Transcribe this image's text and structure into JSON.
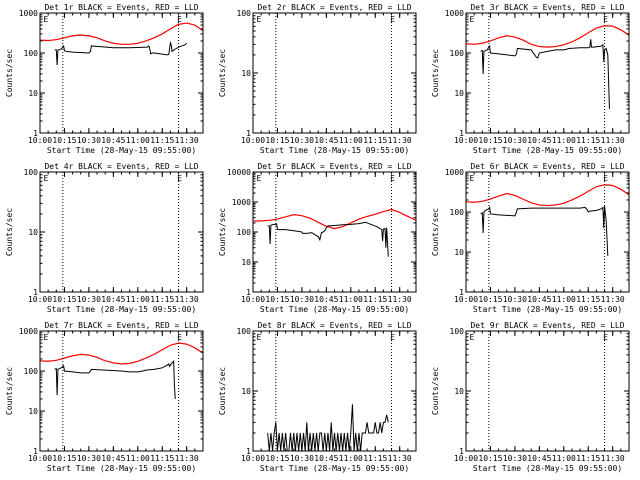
{
  "figure": {
    "xlabel_template": "Start Time (28-May-15 09:55:00)",
    "ylabel": "Counts/sec",
    "title_suffix": " BLACK = Events, RED = LLD",
    "x_ticks": [
      "10:00",
      "10:15",
      "10:30",
      "10:45",
      "11:00",
      "11:15",
      "11:30"
    ],
    "marker_E": "E",
    "colors": {
      "events": "#000000",
      "lld": "#ff0000",
      "axes": "#000000",
      "background": "#ffffff"
    }
  },
  "chart_data": [
    {
      "type": "line",
      "title": "Det 1r",
      "x_range_min": [
        600,
        700
      ],
      "y_range": [
        1,
        1000
      ],
      "y_ticks": [
        1,
        10,
        100,
        1000
      ],
      "y_tick_labels": [
        "1",
        "10",
        "100",
        "1000"
      ],
      "saa_lines_min": [
        614,
        685
      ],
      "E_markers_min": [
        604,
        686
      ],
      "series": [
        {
          "name": "LLD",
          "color": "#ff0000",
          "x": [
            600,
            605,
            610,
            615,
            620,
            625,
            630,
            635,
            640,
            645,
            650,
            655,
            660,
            665,
            670,
            675,
            680,
            685,
            690,
            695,
            700
          ],
          "y": [
            210,
            205,
            215,
            240,
            270,
            280,
            270,
            240,
            200,
            175,
            165,
            165,
            175,
            200,
            240,
            300,
            400,
            520,
            560,
            500,
            360
          ]
        },
        {
          "name": "Events",
          "color": "#000000",
          "x": [
            609,
            610,
            610.5,
            611,
            612,
            613,
            614,
            614.5,
            615,
            616,
            620,
            630,
            631,
            631.5,
            636,
            645,
            655,
            666,
            666.5,
            667,
            668,
            669,
            670,
            674,
            678,
            679,
            680,
            680.5,
            681,
            683,
            685,
            687,
            689,
            690
          ],
          "y": [
            120,
            120,
            50,
            118,
            122,
            125,
            140,
            150,
            115,
            110,
            105,
            100,
            110,
            150,
            145,
            135,
            135,
            140,
            150,
            145,
            95,
            100,
            100,
            95,
            90,
            92,
            180,
            160,
            110,
            125,
            140,
            150,
            160,
            175
          ]
        }
      ]
    },
    {
      "type": "line",
      "title": "Det 2r",
      "x_range_min": [
        600,
        700
      ],
      "y_range": [
        1,
        100
      ],
      "y_ticks": [
        1,
        10,
        100
      ],
      "y_tick_labels": [
        "1",
        "10",
        "100"
      ],
      "saa_lines_min": [
        614,
        685
      ],
      "E_markers_min": [
        604,
        686
      ],
      "series": []
    },
    {
      "type": "line",
      "title": "Det 3r",
      "x_range_min": [
        600,
        700
      ],
      "y_range": [
        1,
        1000
      ],
      "y_ticks": [
        1,
        10,
        100,
        1000
      ],
      "y_tick_labels": [
        "1",
        "10",
        "100",
        "1000"
      ],
      "saa_lines_min": [
        614,
        685
      ],
      "E_markers_min": [
        604,
        686
      ],
      "series": [
        {
          "name": "LLD",
          "color": "#ff0000",
          "x": [
            600,
            605,
            610,
            615,
            620,
            625,
            630,
            635,
            640,
            645,
            650,
            655,
            660,
            665,
            670,
            675,
            680,
            685,
            690,
            695,
            700
          ],
          "y": [
            170,
            165,
            175,
            200,
            240,
            270,
            250,
            210,
            165,
            145,
            140,
            145,
            160,
            190,
            240,
            320,
            420,
            480,
            470,
            380,
            280
          ]
        },
        {
          "name": "Events",
          "color": "#000000",
          "x": [
            609,
            610,
            610.5,
            611,
            612,
            613,
            614,
            614.5,
            615,
            620,
            630,
            631,
            631.5,
            640,
            643,
            644,
            645,
            650,
            655,
            660,
            662,
            663,
            670,
            675,
            676,
            676.5,
            677,
            679,
            680,
            682,
            683,
            684,
            684.5,
            685,
            686,
            687,
            688
          ],
          "y": [
            110,
            115,
            30,
            110,
            115,
            120,
            140,
            150,
            100,
            95,
            85,
            95,
            130,
            120,
            80,
            75,
            100,
            110,
            120,
            120,
            125,
            130,
            135,
            135,
            140,
            220,
            140,
            140,
            145,
            145,
            150,
            160,
            60,
            120,
            130,
            90,
            4
          ]
        }
      ]
    },
    {
      "type": "line",
      "title": "Det 4r",
      "x_range_min": [
        600,
        700
      ],
      "y_range": [
        1,
        100
      ],
      "y_ticks": [
        1,
        10,
        100
      ],
      "y_tick_labels": [
        "1",
        "10",
        "100"
      ],
      "saa_lines_min": [
        614,
        685
      ],
      "E_markers_min": [
        604,
        686
      ],
      "series": []
    },
    {
      "type": "line",
      "title": "Det 5r",
      "x_range_min": [
        600,
        700
      ],
      "y_range": [
        1,
        10000
      ],
      "y_ticks": [
        1,
        10,
        100,
        1000,
        10000
      ],
      "y_tick_labels": [
        "1",
        "10",
        "100",
        "1000",
        "10000"
      ],
      "saa_lines_min": [
        614,
        685
      ],
      "E_markers_min": [
        604,
        686
      ],
      "series": [
        {
          "name": "LLD",
          "color": "#ff0000",
          "x": [
            600,
            605,
            610,
            615,
            620,
            625,
            630,
            635,
            640,
            645,
            650,
            655,
            660,
            665,
            670,
            675,
            680,
            685,
            690,
            695,
            700
          ],
          "y": [
            230,
            235,
            245,
            270,
            320,
            380,
            350,
            290,
            210,
            155,
            130,
            150,
            200,
            270,
            330,
            390,
            480,
            560,
            450,
            330,
            250
          ]
        },
        {
          "name": "Events",
          "color": "#000000",
          "x": [
            609,
            610,
            610.5,
            611,
            612,
            613,
            614,
            614.5,
            615,
            620,
            625,
            630,
            630.5,
            633,
            636,
            640,
            641,
            642,
            643,
            644,
            645,
            646,
            650,
            655,
            660,
            665,
            668,
            669,
            670,
            676,
            678,
            679,
            679.5,
            680,
            681,
            681.5,
            682,
            683
          ],
          "y": [
            160,
            160,
            40,
            170,
            175,
            180,
            180,
            185,
            120,
            120,
            110,
            100,
            90,
            90,
            95,
            70,
            55,
            95,
            100,
            110,
            140,
            160,
            165,
            175,
            180,
            190,
            205,
            210,
            200,
            150,
            130,
            120,
            50,
            125,
            130,
            30,
            140,
            15
          ]
        }
      ]
    },
    {
      "type": "line",
      "title": "Det 6r",
      "x_range_min": [
        600,
        700
      ],
      "y_range": [
        1,
        1000
      ],
      "y_ticks": [
        1,
        10,
        100,
        1000
      ],
      "y_tick_labels": [
        "1",
        "10",
        "100",
        "1000"
      ],
      "saa_lines_min": [
        614,
        685
      ],
      "E_markers_min": [
        604,
        686
      ],
      "series": [
        {
          "name": "LLD",
          "color": "#ff0000",
          "x": [
            600,
            605,
            610,
            615,
            620,
            625,
            630,
            635,
            640,
            645,
            650,
            655,
            660,
            665,
            670,
            675,
            680,
            685,
            690,
            695,
            700
          ],
          "y": [
            180,
            175,
            185,
            210,
            250,
            290,
            260,
            210,
            170,
            150,
            145,
            150,
            165,
            200,
            250,
            330,
            430,
            480,
            460,
            370,
            270
          ]
        },
        {
          "name": "Events",
          "color": "#000000",
          "x": [
            609,
            610,
            610.5,
            611,
            612,
            613,
            614,
            614.5,
            615,
            620,
            630,
            631,
            631.5,
            640,
            650,
            660,
            670,
            673,
            674,
            675,
            676,
            680,
            683,
            684,
            684.5,
            685,
            686,
            687
          ],
          "y": [
            90,
            95,
            30,
            100,
            110,
            115,
            120,
            130,
            90,
            85,
            80,
            100,
            120,
            125,
            125,
            125,
            125,
            130,
            120,
            100,
            105,
            110,
            120,
            130,
            40,
            140,
            60,
            8
          ]
        }
      ]
    },
    {
      "type": "line",
      "title": "Det 7r",
      "x_range_min": [
        600,
        700
      ],
      "y_range": [
        1,
        1000
      ],
      "y_ticks": [
        1,
        10,
        100,
        1000
      ],
      "y_tick_labels": [
        "1",
        "10",
        "100",
        "1000"
      ],
      "saa_lines_min": [
        614,
        685
      ],
      "E_markers_min": [
        604,
        686
      ],
      "series": [
        {
          "name": "LLD",
          "color": "#ff0000",
          "x": [
            600,
            605,
            610,
            615,
            620,
            625,
            630,
            635,
            640,
            645,
            650,
            655,
            660,
            665,
            670,
            675,
            680,
            685,
            690,
            695,
            700
          ],
          "y": [
            180,
            175,
            185,
            210,
            240,
            260,
            250,
            220,
            180,
            160,
            150,
            155,
            175,
            210,
            260,
            340,
            440,
            500,
            470,
            380,
            280
          ]
        },
        {
          "name": "Events",
          "color": "#000000",
          "x": [
            609,
            610,
            610.5,
            611,
            612,
            613,
            614,
            614.5,
            615,
            620,
            625,
            630,
            631,
            631.5,
            640,
            650,
            655,
            660,
            663,
            665,
            670,
            675,
            678,
            679,
            679.5,
            680,
            681,
            682,
            682.5,
            683
          ],
          "y": [
            110,
            115,
            25,
            110,
            115,
            120,
            130,
            135,
            100,
            95,
            90,
            90,
            100,
            110,
            105,
            100,
            95,
            95,
            100,
            105,
            110,
            120,
            140,
            150,
            130,
            140,
            160,
            175,
            40,
            20
          ]
        }
      ]
    },
    {
      "type": "line",
      "title": "Det 8r",
      "x_range_min": [
        600,
        700
      ],
      "y_range": [
        1,
        100
      ],
      "y_ticks": [
        1,
        10,
        100
      ],
      "y_tick_labels": [
        "1",
        "10",
        "100"
      ],
      "saa_lines_min": [
        614,
        685
      ],
      "E_markers_min": [
        604,
        686
      ],
      "series": [
        {
          "name": "Events",
          "color": "#000000",
          "x": [
            609,
            610,
            611,
            612,
            613,
            614,
            615,
            616,
            617,
            618,
            619,
            620,
            621,
            622,
            623,
            624,
            625,
            626,
            627,
            628,
            629,
            630,
            631,
            632,
            633,
            634,
            635,
            636,
            637,
            638,
            639,
            640,
            641,
            642,
            643,
            644,
            645,
            646,
            647,
            648,
            649,
            650,
            651,
            652,
            653,
            654,
            655,
            656,
            657,
            658,
            659,
            660,
            661,
            662,
            663,
            664,
            665,
            666,
            667,
            668,
            669,
            670,
            671,
            672,
            673,
            674,
            675,
            676,
            677,
            678,
            679,
            680,
            681,
            682,
            683
          ],
          "y": [
            2,
            1,
            2,
            1,
            2,
            3,
            1,
            2,
            1,
            2,
            1,
            2,
            1,
            1,
            2,
            1,
            2,
            1,
            2,
            1,
            2,
            1,
            2,
            1,
            3,
            1,
            2,
            1,
            2,
            1,
            2,
            1,
            2,
            2,
            1,
            2,
            1,
            2,
            1,
            3,
            1,
            2,
            1,
            2,
            1,
            2,
            1,
            2,
            1,
            2,
            1,
            2,
            6,
            1,
            2,
            1,
            2,
            1,
            2,
            2,
            2,
            3,
            2,
            2,
            2,
            2,
            3,
            2,
            2,
            3,
            2,
            3,
            3,
            4,
            3
          ]
        }
      ]
    },
    {
      "type": "line",
      "title": "Det 9r",
      "x_range_min": [
        600,
        700
      ],
      "y_range": [
        1,
        100
      ],
      "y_ticks": [
        1,
        10,
        100
      ],
      "y_tick_labels": [
        "1",
        "10",
        "100"
      ],
      "saa_lines_min": [
        614,
        685
      ],
      "E_markers_min": [
        604,
        686
      ],
      "series": []
    }
  ]
}
